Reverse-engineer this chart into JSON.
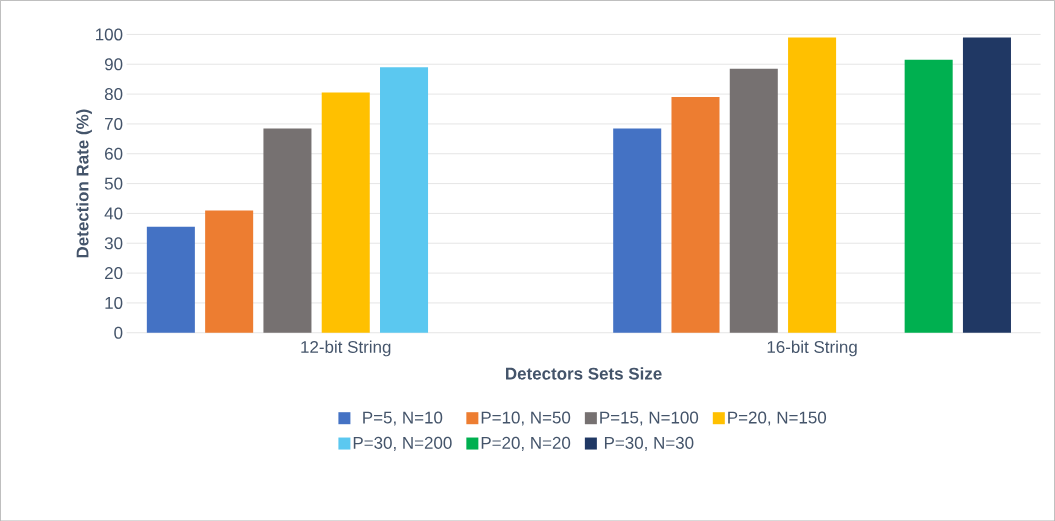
{
  "chart_data": {
    "type": "bar",
    "xlabel": "Detectors Sets Size",
    "ylabel": "Detection Rate (%)",
    "categories": [
      "12-bit String",
      "16-bit String"
    ],
    "series": [
      {
        "name": "P=5, N=10",
        "color": "#4472c4",
        "values": [
          35.5,
          68.5
        ]
      },
      {
        "name": "P=10, N=50",
        "color": "#ed7d31",
        "values": [
          41,
          79
        ]
      },
      {
        "name": "P=15, N=100",
        "color": "#767171",
        "values": [
          68.5,
          88.5
        ]
      },
      {
        "name": "P=20, N=150",
        "color": "#ffc000",
        "values": [
          80.5,
          99
        ]
      },
      {
        "name": "P=30, N=200",
        "color": "#5bc8f0",
        "values": [
          89,
          null
        ]
      },
      {
        "name": "P=20, N=20",
        "color": "#00b050",
        "values": [
          null,
          91.5
        ]
      },
      {
        "name": "P=30, N=30",
        "color": "#203864",
        "values": [
          null,
          99
        ]
      }
    ],
    "ylim": [
      0,
      100
    ],
    "yticks": [
      0,
      10,
      20,
      30,
      40,
      50,
      60,
      70,
      80,
      90,
      100
    ],
    "grid": "y",
    "legend": "bottom"
  }
}
